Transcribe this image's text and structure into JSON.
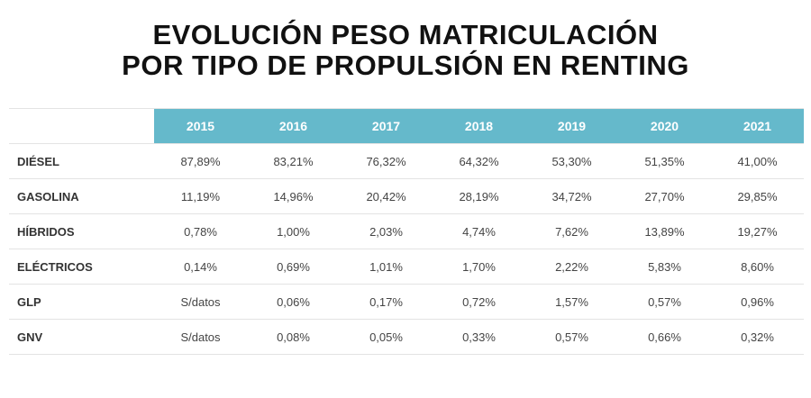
{
  "title": {
    "line1": "EVOLUCIÓN PESO MATRICULACIÓN",
    "line2": "POR TIPO DE PROPULSIÓN EN RENTING"
  },
  "colors": {
    "header_bg": "#65b9cb",
    "header_text": "#ffffff",
    "row_border": "#e3e3e3"
  },
  "chart_data": {
    "type": "table",
    "title": "EVOLUCIÓN PESO MATRICULACIÓN POR TIPO DE PROPULSIÓN EN RENTING",
    "columns": [
      "2015",
      "2016",
      "2017",
      "2018",
      "2019",
      "2020",
      "2021"
    ],
    "rows": [
      {
        "label": "DIÉSEL",
        "values": [
          "87,89%",
          "83,21%",
          "76,32%",
          "64,32%",
          "53,30%",
          "51,35%",
          "41,00%"
        ]
      },
      {
        "label": "GASOLINA",
        "values": [
          "11,19%",
          "14,96%",
          "20,42%",
          "28,19%",
          "34,72%",
          "27,70%",
          "29,85%"
        ]
      },
      {
        "label": "HÍBRIDOS",
        "values": [
          "0,78%",
          "1,00%",
          "2,03%",
          "4,74%",
          "7,62%",
          "13,89%",
          "19,27%"
        ]
      },
      {
        "label": "ELÉCTRICOS",
        "values": [
          "0,14%",
          "0,69%",
          "1,01%",
          "1,70%",
          "2,22%",
          "5,83%",
          "8,60%"
        ]
      },
      {
        "label": "GLP",
        "values": [
          "S/datos",
          "0,06%",
          "0,17%",
          "0,72%",
          "1,57%",
          "0,57%",
          "0,96%"
        ]
      },
      {
        "label": "GNV",
        "values": [
          "S/datos",
          "0,08%",
          "0,05%",
          "0,33%",
          "0,57%",
          "0,66%",
          "0,32%"
        ]
      }
    ]
  }
}
